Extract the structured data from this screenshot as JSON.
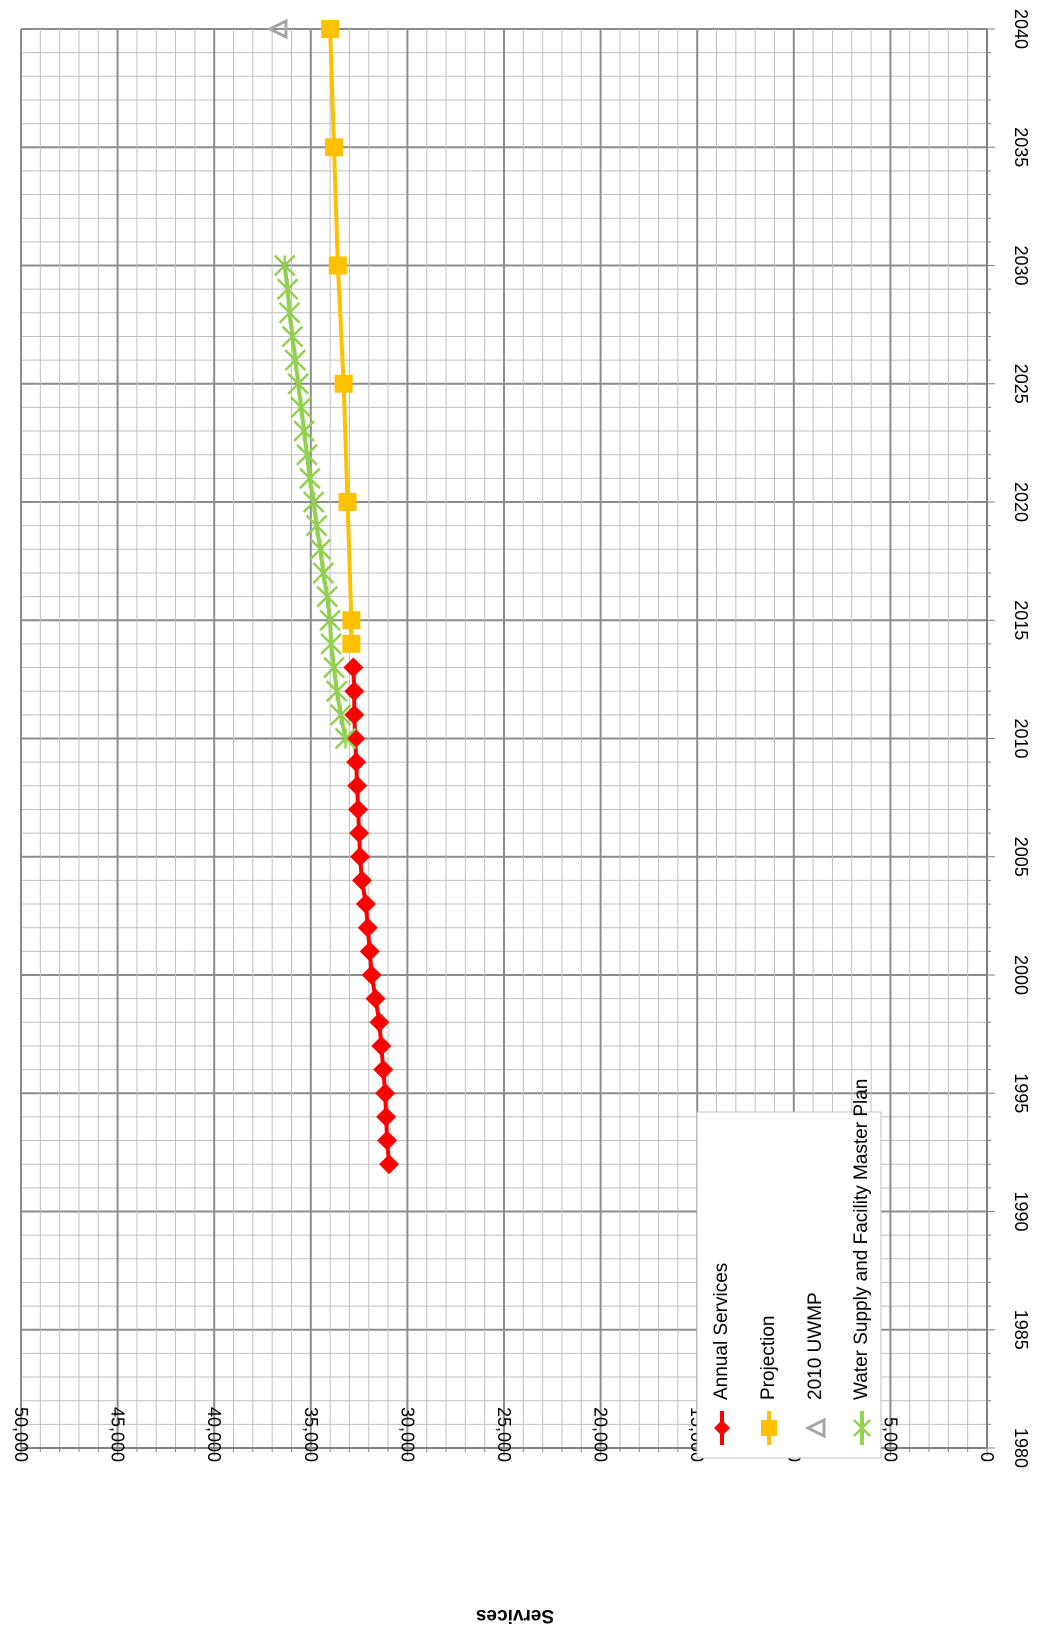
{
  "chart_data": {
    "type": "line",
    "orientation": "rotated-90-clockwise",
    "title": "",
    "xlabel": "",
    "ylabel": "Services",
    "xlim": [
      1980,
      2040
    ],
    "ylim": [
      0,
      50000
    ],
    "x_ticks": [
      "1980",
      "1985",
      "1990",
      "1995",
      "2000",
      "2005",
      "2010",
      "2015",
      "2020",
      "2025",
      "2030",
      "2035",
      "2040"
    ],
    "y_ticks": [
      "0",
      "5,000",
      "10,000",
      "15,000",
      "20,000",
      "25,000",
      "30,000",
      "35,000",
      "40,000",
      "45,000",
      "50,000"
    ],
    "grid": true,
    "legend_position": "bottom-left",
    "series": [
      {
        "name": "Annual Services",
        "color": "#ff0000",
        "marker": "diamond",
        "points": [
          [
            1992,
            30950
          ],
          [
            1993,
            31050
          ],
          [
            1994,
            31100
          ],
          [
            1995,
            31150
          ],
          [
            1996,
            31250
          ],
          [
            1997,
            31350
          ],
          [
            1998,
            31450
          ],
          [
            1999,
            31650
          ],
          [
            2000,
            31850
          ],
          [
            2001,
            31950
          ],
          [
            2002,
            32050
          ],
          [
            2003,
            32150
          ],
          [
            2004,
            32350
          ],
          [
            2005,
            32450
          ],
          [
            2006,
            32500
          ],
          [
            2007,
            32550
          ],
          [
            2008,
            32600
          ],
          [
            2009,
            32650
          ],
          [
            2010,
            32700
          ],
          [
            2011,
            32750
          ],
          [
            2012,
            32750
          ],
          [
            2013,
            32800
          ]
        ]
      },
      {
        "name": "Projection",
        "color": "#ffc000",
        "marker": "square",
        "points": [
          [
            2014,
            32900
          ],
          [
            2015,
            32900
          ],
          [
            2020,
            33100
          ],
          [
            2025,
            33300
          ],
          [
            2030,
            33600
          ],
          [
            2035,
            33800
          ],
          [
            2040,
            34000
          ]
        ]
      },
      {
        "name": "2010 UWMP",
        "color": "#a6a6a6",
        "marker": "triangle",
        "points": [
          [
            2040,
            36700
          ]
        ]
      },
      {
        "name": "Water Supply and Facility Master Plan",
        "color": "#92d050",
        "marker": "x",
        "points": [
          [
            2010,
            33200
          ],
          [
            2011,
            33450
          ],
          [
            2012,
            33650
          ],
          [
            2013,
            33800
          ],
          [
            2014,
            33950
          ],
          [
            2015,
            34000
          ],
          [
            2016,
            34150
          ],
          [
            2017,
            34350
          ],
          [
            2018,
            34500
          ],
          [
            2019,
            34700
          ],
          [
            2020,
            34850
          ],
          [
            2021,
            35050
          ],
          [
            2022,
            35200
          ],
          [
            2023,
            35350
          ],
          [
            2024,
            35500
          ],
          [
            2025,
            35650
          ],
          [
            2026,
            35800
          ],
          [
            2027,
            35950
          ],
          [
            2028,
            36100
          ],
          [
            2029,
            36200
          ],
          [
            2030,
            36350
          ]
        ]
      }
    ]
  }
}
